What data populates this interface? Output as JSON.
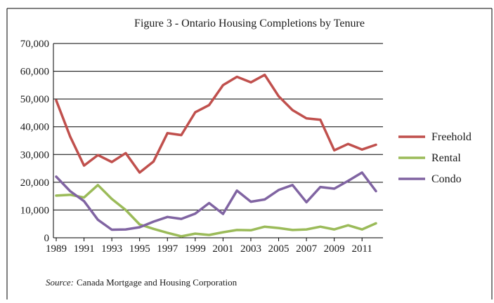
{
  "chart_data": {
    "type": "line",
    "title": "Figure 3 - Ontario Housing Completions by Tenure",
    "x": [
      1989,
      1990,
      1991,
      1992,
      1993,
      1994,
      1995,
      1996,
      1997,
      1998,
      1999,
      2000,
      2001,
      2002,
      2003,
      2004,
      2005,
      2006,
      2007,
      2008,
      2009,
      2010,
      2011,
      2012
    ],
    "xlim": [
      1989,
      2012
    ],
    "xticks": [
      1989,
      1991,
      1993,
      1995,
      1997,
      1999,
      2001,
      2003,
      2005,
      2007,
      2009,
      2011
    ],
    "ylim": [
      0,
      70000
    ],
    "yticks": [
      0,
      {
        "value": 10000,
        "label": "10,000"
      },
      {
        "value": 20000,
        "label": "20,000"
      },
      {
        "value": 30000,
        "label": "30,000"
      },
      {
        "value": 40000,
        "label": "40,000"
      },
      {
        "value": 50000,
        "label": "50,000"
      },
      {
        "value": 60000,
        "label": "60,000"
      },
      {
        "value": 70000,
        "label": "70,000"
      }
    ],
    "grid": true,
    "legend": "right",
    "series": [
      {
        "name": "Freehold",
        "color": "#c0504d",
        "values": [
          49500,
          36500,
          26000,
          29800,
          27300,
          30500,
          23500,
          27500,
          37700,
          37000,
          45200,
          47800,
          55000,
          58000,
          56000,
          58700,
          51000,
          46000,
          43000,
          42500,
          31500,
          33800,
          31800,
          33500
        ]
      },
      {
        "name": "Rental",
        "color": "#9bbb59",
        "values": [
          15200,
          15500,
          14500,
          19000,
          14000,
          10000,
          4800,
          3200,
          1800,
          500,
          1500,
          1000,
          2000,
          2800,
          2700,
          4000,
          3500,
          2800,
          3000,
          4000,
          3000,
          4500,
          3000,
          5200
        ]
      },
      {
        "name": "Condo",
        "color": "#8064a2",
        "values": [
          22000,
          16800,
          13200,
          6500,
          2900,
          3000,
          3800,
          5800,
          7500,
          6800,
          8700,
          12500,
          8600,
          17000,
          13000,
          13800,
          17200,
          19000,
          12800,
          18300,
          17700,
          20500,
          23500,
          16800
        ]
      }
    ],
    "source_label": "Source:",
    "source": "Canada Mortgage and Housing Corporation"
  }
}
